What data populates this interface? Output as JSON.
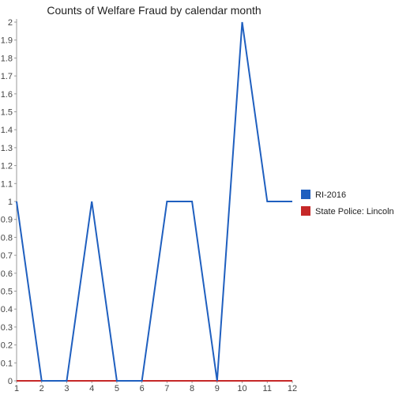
{
  "chart_data": {
    "type": "line",
    "title": "Counts of Welfare Fraud by calendar month",
    "xlabel": "",
    "ylabel": "",
    "x": [
      1,
      2,
      3,
      4,
      5,
      6,
      7,
      8,
      9,
      10,
      11,
      12
    ],
    "xlim": [
      1,
      12
    ],
    "ylim": [
      0,
      2
    ],
    "y_ticks": [
      "0",
      "0.1",
      "0.2",
      "0.3",
      "0.4",
      "0.5",
      "0.6",
      "0.7",
      "0.8",
      "0.9",
      "1",
      "1.1",
      "1.2",
      "1.3",
      "1.4",
      "1.5",
      "1.6",
      "1.7",
      "1.8",
      "1.9",
      "2"
    ],
    "x_ticks": [
      "1",
      "2",
      "3",
      "4",
      "5",
      "6",
      "7",
      "8",
      "9",
      "10",
      "11",
      "12"
    ],
    "grid": false,
    "legend_position": "right",
    "series": [
      {
        "name": "RI-2016",
        "color": "#1f5fbf",
        "values": [
          1,
          0,
          0,
          1,
          0,
          0,
          1,
          1,
          0,
          2,
          1,
          1
        ]
      },
      {
        "name": "State Police: Lincoln",
        "color": "#c62828",
        "values": [
          0,
          0,
          0,
          0,
          0,
          0,
          0,
          0,
          0,
          0,
          0,
          0
        ]
      }
    ]
  }
}
